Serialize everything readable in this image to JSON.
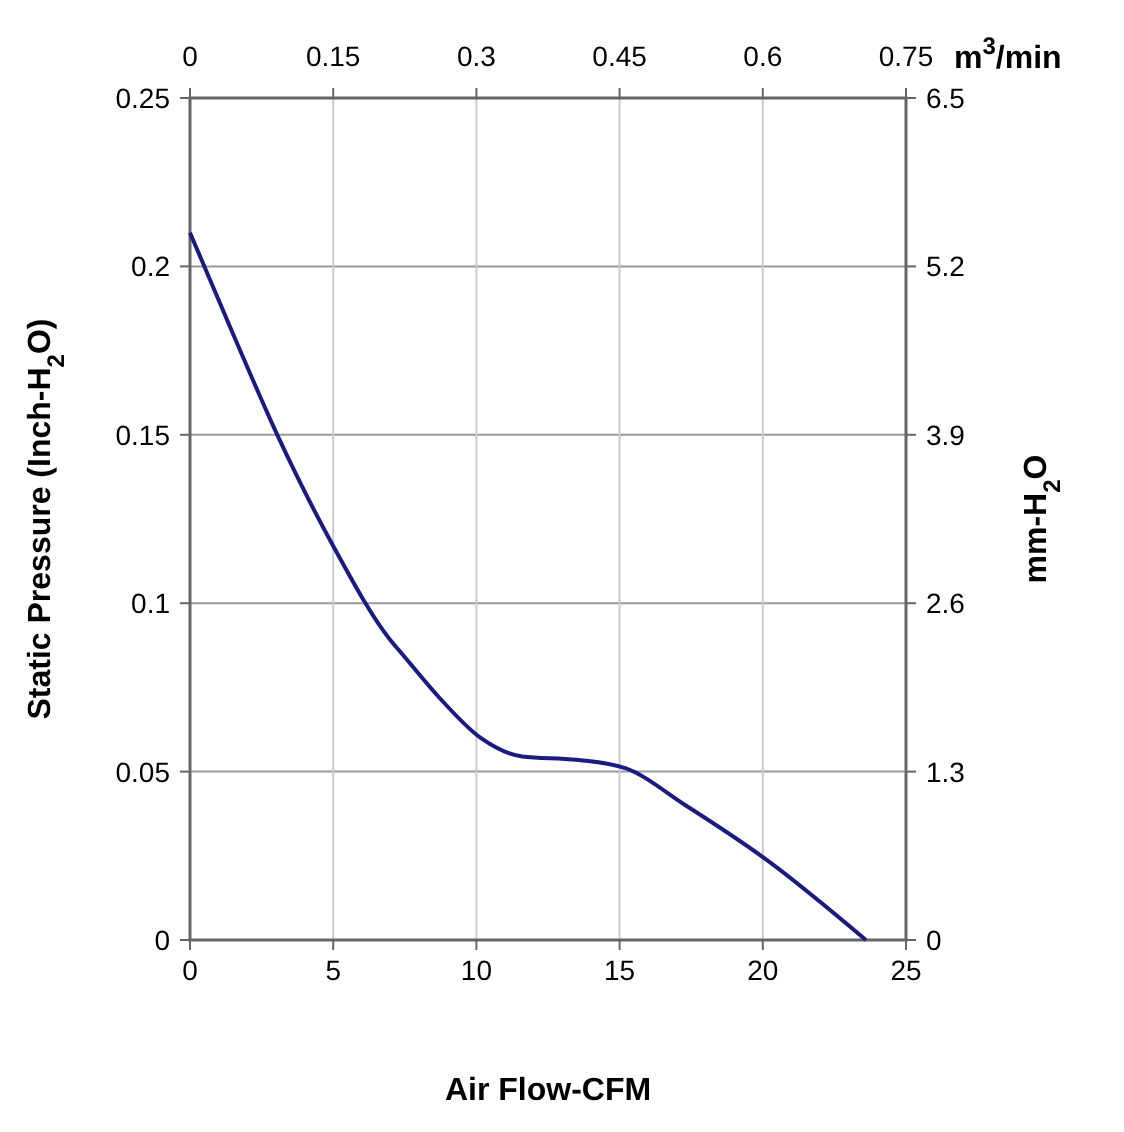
{
  "chart_data": {
    "type": "line",
    "xlabel": "Air Flow-CFM",
    "ylabel": "Static Pressure (Inch-H$_{2}$O)",
    "y2label": "mm-H$_{2}$O",
    "x2label": "m$^{3}$/min",
    "x": [
      0,
      1.5,
      3.1,
      5,
      7,
      7.4,
      8.7,
      10.15,
      11.6,
      13.5,
      15.2,
      17.3,
      20.1,
      23.6
    ],
    "series": [
      {
        "color": "#1a1a80",
        "values": [
          0.21,
          0.18,
          0.149,
          0.117,
          0.089,
          0.085,
          0.072,
          0.06,
          0.0545,
          0.0535,
          0.051,
          0.04,
          0.024,
          0
        ]
      }
    ],
    "xlim": [
      0,
      25
    ],
    "xticks": [
      0,
      5,
      10,
      15,
      20,
      25
    ],
    "ylim": [
      0,
      0.25
    ],
    "yticks": [
      0,
      0.05,
      0.1,
      0.15,
      0.2,
      0.25
    ],
    "x2lim": [
      0,
      0.75
    ],
    "x2ticks": [
      0,
      0.15,
      0.3,
      0.45,
      0.6,
      0.75
    ],
    "y2lim": [
      0,
      6.5
    ],
    "y2ticks": [
      0,
      1.3,
      2.6,
      3.9,
      5.2,
      6.5
    ],
    "grid": true,
    "marker": "none",
    "line_style": "solid"
  }
}
